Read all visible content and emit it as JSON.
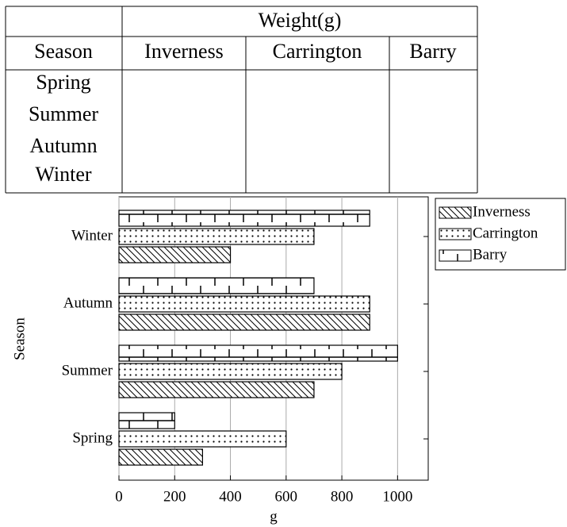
{
  "table": {
    "header": [
      "Weight(g)"
    ],
    "columns": [
      "Season",
      "Inverness",
      "Carrington",
      "Barry"
    ],
    "rows": [
      [
        "Spring"
      ],
      [
        "Summer"
      ],
      [
        "Autumn"
      ],
      [
        "Winter"
      ]
    ]
  },
  "chart_data": {
    "type": "hbar",
    "ylabel": "Season",
    "xlabel": "g",
    "categories": [
      "Spring",
      "Summer",
      "Autumn",
      "Winter"
    ],
    "series": [
      {
        "name": "Inverness",
        "color": "#000000",
        "values": [
          300,
          700,
          900,
          400
        ]
      },
      {
        "name": "Carrington",
        "color": "#000000",
        "values": [
          600,
          800,
          900,
          700
        ]
      },
      {
        "name": "Barry",
        "color": "#000000",
        "values": [
          200,
          1000,
          700,
          900
        ]
      }
    ],
    "xlim": [
      0,
      1110
    ],
    "xticks": [
      0,
      200,
      400,
      600,
      800,
      1000
    ],
    "grid": true,
    "legend": "outside-top-right"
  }
}
